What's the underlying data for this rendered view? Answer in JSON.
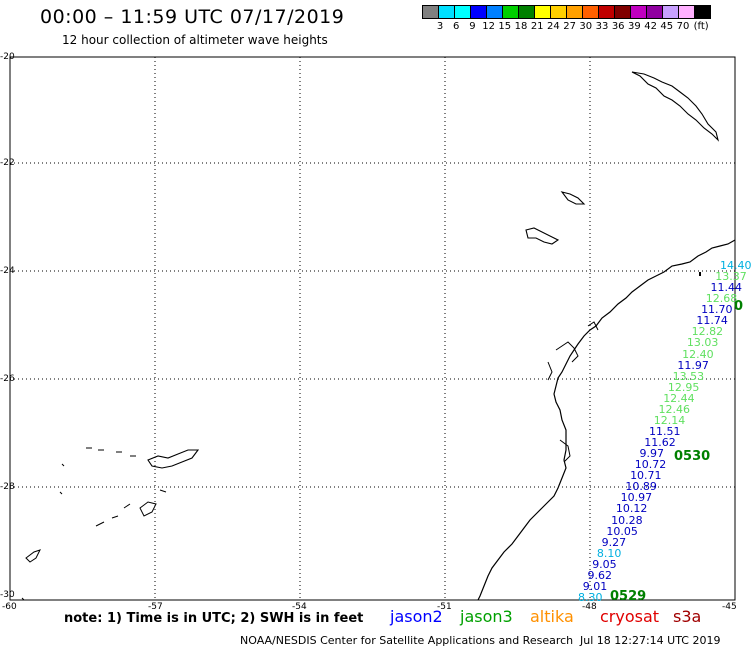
{
  "title": "00:00 – 11:59 UTC 07/17/2019",
  "subtitle": "12 hour collection of altimeter wave heights",
  "colorbar": {
    "colors": [
      "#808080",
      "#00e0ff",
      "#00ffff",
      "#0000ff",
      "#0080ff",
      "#00d000",
      "#008000",
      "#ffff00",
      "#ffd000",
      "#ffa000",
      "#ff6000",
      "#c00000",
      "#800000",
      "#c000c0",
      "#9000a0",
      "#c8a0ff",
      "#ffb0ff",
      "#000000"
    ],
    "labels": [
      "3",
      "6",
      "9",
      "12",
      "15",
      "18",
      "21",
      "24",
      "27",
      "30",
      "33",
      "36",
      "39",
      "42",
      "45",
      "70",
      "(ft)"
    ]
  },
  "lat_labels": [
    "-20",
    "-22",
    "-24",
    "-26",
    "-28",
    "-30"
  ],
  "lon_labels": [
    "-60",
    "-57",
    "-54",
    "-51",
    "-48",
    "-45"
  ],
  "track_values": [
    {
      "v": "14.40",
      "c": "#00b0e0"
    },
    {
      "v": "13.37",
      "c": "#60e060"
    },
    {
      "v": "11.44",
      "c": "#0000c0"
    },
    {
      "v": "12.68",
      "c": "#60e060"
    },
    {
      "v": "11.70",
      "c": "#0000c0"
    },
    {
      "v": "11.74",
      "c": "#0000c0"
    },
    {
      "v": "12.82",
      "c": "#60e060"
    },
    {
      "v": "13.03",
      "c": "#60e060"
    },
    {
      "v": "12.40",
      "c": "#60e060"
    },
    {
      "v": "11.97",
      "c": "#0000c0"
    },
    {
      "v": "13.53",
      "c": "#60e060"
    },
    {
      "v": "12.95",
      "c": "#60e060"
    },
    {
      "v": "12.44",
      "c": "#60e060"
    },
    {
      "v": "12.46",
      "c": "#60e060"
    },
    {
      "v": "12.14",
      "c": "#60e060"
    },
    {
      "v": "11.51",
      "c": "#0000c0"
    },
    {
      "v": "11.62",
      "c": "#0000c0"
    },
    {
      "v": "9.97",
      "c": "#0000c0"
    },
    {
      "v": "10.72",
      "c": "#0000c0"
    },
    {
      "v": "10.71",
      "c": "#0000c0"
    },
    {
      "v": "10.89",
      "c": "#0000c0"
    },
    {
      "v": "10.97",
      "c": "#0000c0"
    },
    {
      "v": "10.12",
      "c": "#0000c0"
    },
    {
      "v": "10.28",
      "c": "#0000c0"
    },
    {
      "v": "10.05",
      "c": "#0000c0"
    },
    {
      "v": "9.27",
      "c": "#0000c0"
    },
    {
      "v": "8.10",
      "c": "#00b0e0"
    },
    {
      "v": "9.05",
      "c": "#0000c0"
    },
    {
      "v": "9.62",
      "c": "#0000c0"
    },
    {
      "v": "9.01",
      "c": "#0000c0"
    },
    {
      "v": "8.30",
      "c": "#00b0e0"
    }
  ],
  "time_labels": [
    "0530",
    "0529",
    "0"
  ],
  "note": "note: 1) Time is in UTC; 2) SWH is in feet",
  "legend": [
    {
      "name": "jason2",
      "color": "#0000ff"
    },
    {
      "name": "jason3",
      "color": "#00a000"
    },
    {
      "name": "altika",
      "color": "#ff9000"
    },
    {
      "name": "cryosat",
      "color": "#e00000"
    },
    {
      "name": "s3a",
      "color": "#a00000"
    }
  ],
  "credit": "NOAA/NESDIS Center for Satellite Applications and Research",
  "timestamp": "Jul 18 12:27:14 UTC 2019"
}
